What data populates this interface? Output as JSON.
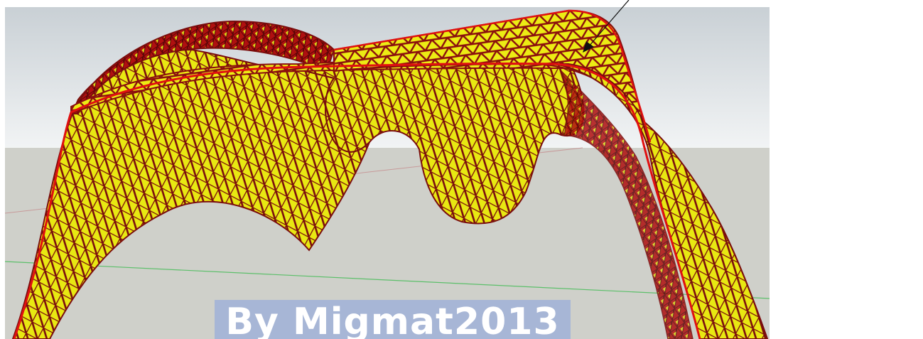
{
  "scene": {
    "sky_top_color": "#d4dade",
    "sky_bottom_color": "#eef1f3",
    "ground_color": "#cfd0ca",
    "surface_fill_color": "#ecec14",
    "mesh_line_color": "#7a0d0d",
    "edge_line_color": "#e01010",
    "green_axis_color": "#5cbf6a",
    "red_axis_color": "#c79a9a",
    "pointer_arrow_icon": "arrow-pointer-icon"
  },
  "watermark": {
    "text": "By Migmat2013",
    "background_color": "#a7b6d6",
    "text_color": "#ffffff"
  }
}
